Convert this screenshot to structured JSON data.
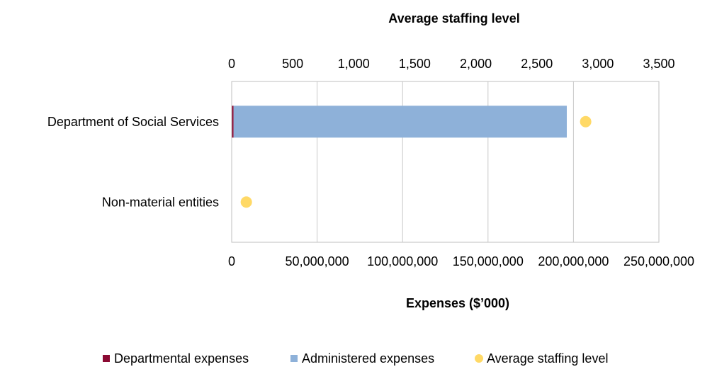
{
  "chart_data": {
    "type": "bar",
    "orientation": "horizontal",
    "stacked": true,
    "categories": [
      "Department of  Social Services",
      "Non-material entities"
    ],
    "series": [
      {
        "name": "Departmental expenses",
        "axis": "bottom",
        "color": "#8B0A33",
        "values": [
          1100000,
          0
        ]
      },
      {
        "name": "Administered expenses",
        "axis": "bottom",
        "color": "#8EB1D9",
        "values": [
          195000000,
          0
        ]
      },
      {
        "name": "Average staffing level",
        "axis": "top",
        "color": "#FFD966",
        "marker": "circle",
        "values": [
          2900,
          120
        ]
      }
    ],
    "top_axis": {
      "title": "Average staffing level",
      "min": 0,
      "max": 3500,
      "ticks": [
        0,
        500,
        1000,
        1500,
        2000,
        2500,
        3000,
        3500
      ],
      "tick_labels": [
        "0",
        "500",
        "1,000",
        "1,500",
        "2,000",
        "2,500",
        "3,000",
        "3,500"
      ]
    },
    "bottom_axis": {
      "title": "Expenses ($’000)",
      "min": 0,
      "max": 250000000,
      "ticks": [
        0,
        50000000,
        100000000,
        150000000,
        200000000,
        250000000
      ],
      "tick_labels": [
        "0",
        "50,000,000",
        "100,000,000",
        "150,000,000",
        "200,000,000",
        "250,000,000"
      ]
    },
    "grid": true,
    "legend_position": "bottom"
  }
}
